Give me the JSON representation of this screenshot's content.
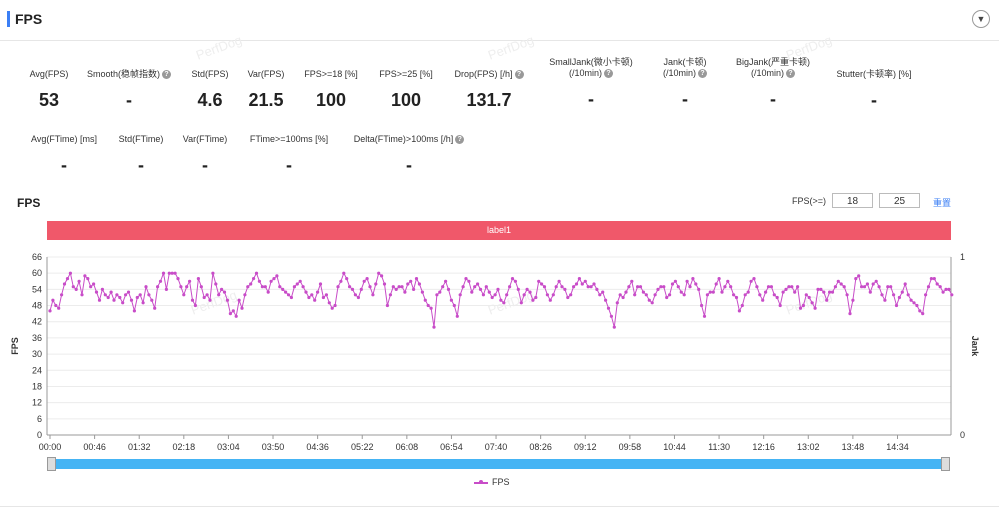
{
  "header": {
    "title": "FPS",
    "collapse_icon": "chevron-down-icon"
  },
  "watermark": "PerfDog",
  "stats_row1": [
    {
      "label": "Avg(FPS)",
      "value": "53",
      "help": false
    },
    {
      "label": "Smooth(稳帧指数)",
      "value": "-",
      "help": true
    },
    {
      "label": "Std(FPS)",
      "value": "4.6",
      "help": false
    },
    {
      "label": "Var(FPS)",
      "value": "21.5",
      "help": false
    },
    {
      "label": "FPS>=18 [%]",
      "value": "100",
      "help": false
    },
    {
      "label": "FPS>=25 [%]",
      "value": "100",
      "help": false
    },
    {
      "label": "Drop(FPS) [/h]",
      "value": "131.7",
      "help": true
    },
    {
      "label": "SmallJank(微小卡顿)\n(/10min)",
      "value": "-",
      "help": true
    },
    {
      "label": "Jank(卡顿)\n(/10min)",
      "value": "-",
      "help": true
    },
    {
      "label": "BigJank(严重卡顿)\n(/10min)",
      "value": "-",
      "help": true
    },
    {
      "label": "Stutter(卡顿率) [%]",
      "value": "-",
      "help": false
    }
  ],
  "stats_row2": [
    {
      "label": "Avg(FTime) [ms]",
      "value": "-",
      "help": false
    },
    {
      "label": "Std(FTime)",
      "value": "-",
      "help": false
    },
    {
      "label": "Var(FTime)",
      "value": "-",
      "help": false
    },
    {
      "label": "FTime>=100ms [%]",
      "value": "-",
      "help": false
    },
    {
      "label": "Delta(FTime)>100ms [/h]",
      "value": "-",
      "help": true
    }
  ],
  "threshold": {
    "label": "FPS(>=)",
    "value1": "18",
    "value2": "25",
    "reset": "重置"
  },
  "label_bar": "label1",
  "legend": "FPS",
  "colors": {
    "series": "#c84cc8",
    "label_bar": "#f0586a",
    "slider": "#45b4f4",
    "accent": "#3b7ff5"
  },
  "chart_data": {
    "type": "line",
    "title": "FPS",
    "ylabel": "FPS",
    "y2label": "Jank",
    "ylim": [
      0,
      66
    ],
    "y2lim": [
      0,
      1
    ],
    "yticks": [
      0,
      6,
      12,
      18,
      24,
      30,
      36,
      42,
      48,
      54,
      60,
      66
    ],
    "y2ticks": [
      0,
      1
    ],
    "xlim_seconds": [
      0,
      923
    ],
    "xticks": [
      "00:00",
      "00:46",
      "01:32",
      "02:18",
      "03:04",
      "03:50",
      "04:36",
      "05:22",
      "06:08",
      "06:54",
      "07:40",
      "08:26",
      "09:12",
      "09:58",
      "10:44",
      "11:30",
      "12:16",
      "13:02",
      "13:48",
      "14:34"
    ],
    "series": [
      {
        "name": "FPS",
        "step_seconds": 3,
        "values": [
          46,
          50,
          48,
          47,
          52,
          56,
          58,
          60,
          55,
          54,
          57,
          52,
          59,
          58,
          55,
          56,
          53,
          50,
          54,
          52,
          51,
          53,
          50,
          52,
          51,
          49,
          52,
          53,
          50,
          46,
          51,
          52,
          49,
          55,
          52,
          50,
          47,
          55,
          57,
          60,
          54,
          60,
          60,
          60,
          58,
          55,
          52,
          55,
          57,
          50,
          48,
          58,
          55,
          51,
          52,
          50,
          60,
          56,
          52,
          54,
          53,
          50,
          45,
          46,
          44,
          50,
          47,
          52,
          55,
          56,
          58,
          60,
          57,
          55,
          55,
          53,
          57,
          58,
          59,
          55,
          54,
          53,
          52,
          51,
          55,
          56,
          57,
          55,
          53,
          51,
          52,
          50,
          53,
          56,
          51,
          52,
          49,
          47,
          48,
          55,
          57,
          60,
          58,
          55,
          54,
          52,
          51,
          54,
          57,
          58,
          55,
          52,
          56,
          60,
          59,
          56,
          48,
          52,
          55,
          54,
          55,
          55,
          53,
          56,
          57,
          54,
          58,
          56,
          53,
          50,
          48,
          47,
          40,
          52,
          53,
          55,
          57,
          54,
          50,
          48,
          44,
          52,
          55,
          58,
          57,
          53,
          55,
          56,
          54,
          52,
          55,
          53,
          51,
          52,
          54,
          50,
          49,
          52,
          55,
          58,
          57,
          54,
          49,
          52,
          54,
          53,
          50,
          51,
          57,
          56,
          55,
          52,
          50,
          52,
          55,
          57,
          55,
          54,
          51,
          52,
          55,
          56,
          58,
          56,
          57,
          55,
          55,
          56,
          54,
          52,
          53,
          50,
          47,
          44,
          40,
          49,
          52,
          51,
          53,
          55,
          57,
          52,
          55,
          55,
          53,
          52,
          50,
          49,
          52,
          54,
          55,
          55,
          51,
          52,
          56,
          57,
          55,
          53,
          52,
          57,
          55,
          58,
          56,
          54,
          48,
          44,
          52,
          53,
          53,
          56,
          58,
          53,
          55,
          57,
          55,
          52,
          51,
          46,
          48,
          52,
          53,
          57,
          58,
          55,
          52,
          50,
          53,
          55,
          55,
          52,
          51,
          48,
          53,
          54,
          55,
          55,
          53,
          55,
          47,
          48,
          52,
          51,
          49,
          47,
          54,
          54,
          53,
          50,
          53,
          53,
          55,
          57,
          56,
          55,
          52,
          45,
          50,
          58,
          59,
          55,
          55,
          56,
          53,
          56,
          57,
          55,
          52,
          50,
          55,
          55,
          52,
          48,
          51,
          53,
          56,
          52,
          50,
          49,
          48,
          46,
          45,
          52,
          55,
          58,
          58,
          56,
          55,
          53,
          54,
          54,
          52
        ]
      }
    ]
  }
}
